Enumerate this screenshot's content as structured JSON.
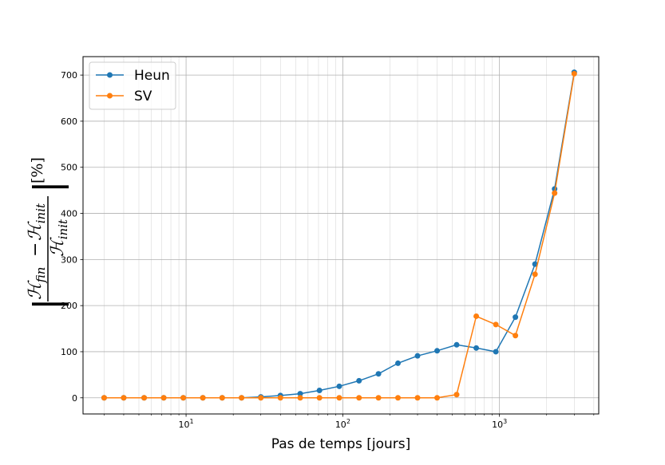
{
  "chart_data": {
    "type": "line",
    "xscale": "log",
    "xlabel": "Pas de temps [jours]",
    "ylabel_unit": "[%]",
    "ylabel_latex": "|(H_fin − H_init)/H_init|",
    "ylabel_parts": {
      "num_left": "ℋ",
      "num_left_sub": "fin",
      "minus": "−",
      "num_right": "ℋ",
      "num_right_sub": "init",
      "den": "ℋ",
      "den_sub": "init"
    },
    "xlim": [
      2.2,
      4300
    ],
    "ylim": [
      -35,
      740
    ],
    "xticks": [
      {
        "value": 10,
        "base": "10",
        "exp": "1"
      },
      {
        "value": 100,
        "base": "10",
        "exp": "2"
      },
      {
        "value": 1000,
        "base": "10",
        "exp": "3"
      }
    ],
    "yticks": [
      0,
      100,
      200,
      300,
      400,
      500,
      600,
      700
    ],
    "grid": true,
    "legend_position": "top-left",
    "x": [
      3,
      4,
      5.4,
      7.2,
      9.6,
      12.8,
      17,
      22.6,
      30,
      40,
      53.5,
      71,
      95,
      127,
      169,
      225,
      300,
      400,
      533,
      711,
      948,
      1264,
      1686,
      2248,
      3000
    ],
    "series": [
      {
        "name": "Heun",
        "color": "#1f77b4",
        "values": [
          0,
          0,
          0,
          0,
          0,
          0,
          0,
          0,
          2,
          5,
          9,
          16,
          25,
          37,
          52,
          75,
          91,
          102,
          115,
          108,
          100,
          175,
          290,
          453,
          706
        ]
      },
      {
        "name": "SV",
        "color": "#ff7f0e",
        "values": [
          0,
          0,
          0,
          0,
          0,
          0,
          0,
          0,
          0,
          0,
          0,
          0,
          0,
          0,
          0,
          0,
          0,
          0,
          7,
          177,
          159,
          135,
          268,
          444,
          703
        ]
      }
    ]
  }
}
